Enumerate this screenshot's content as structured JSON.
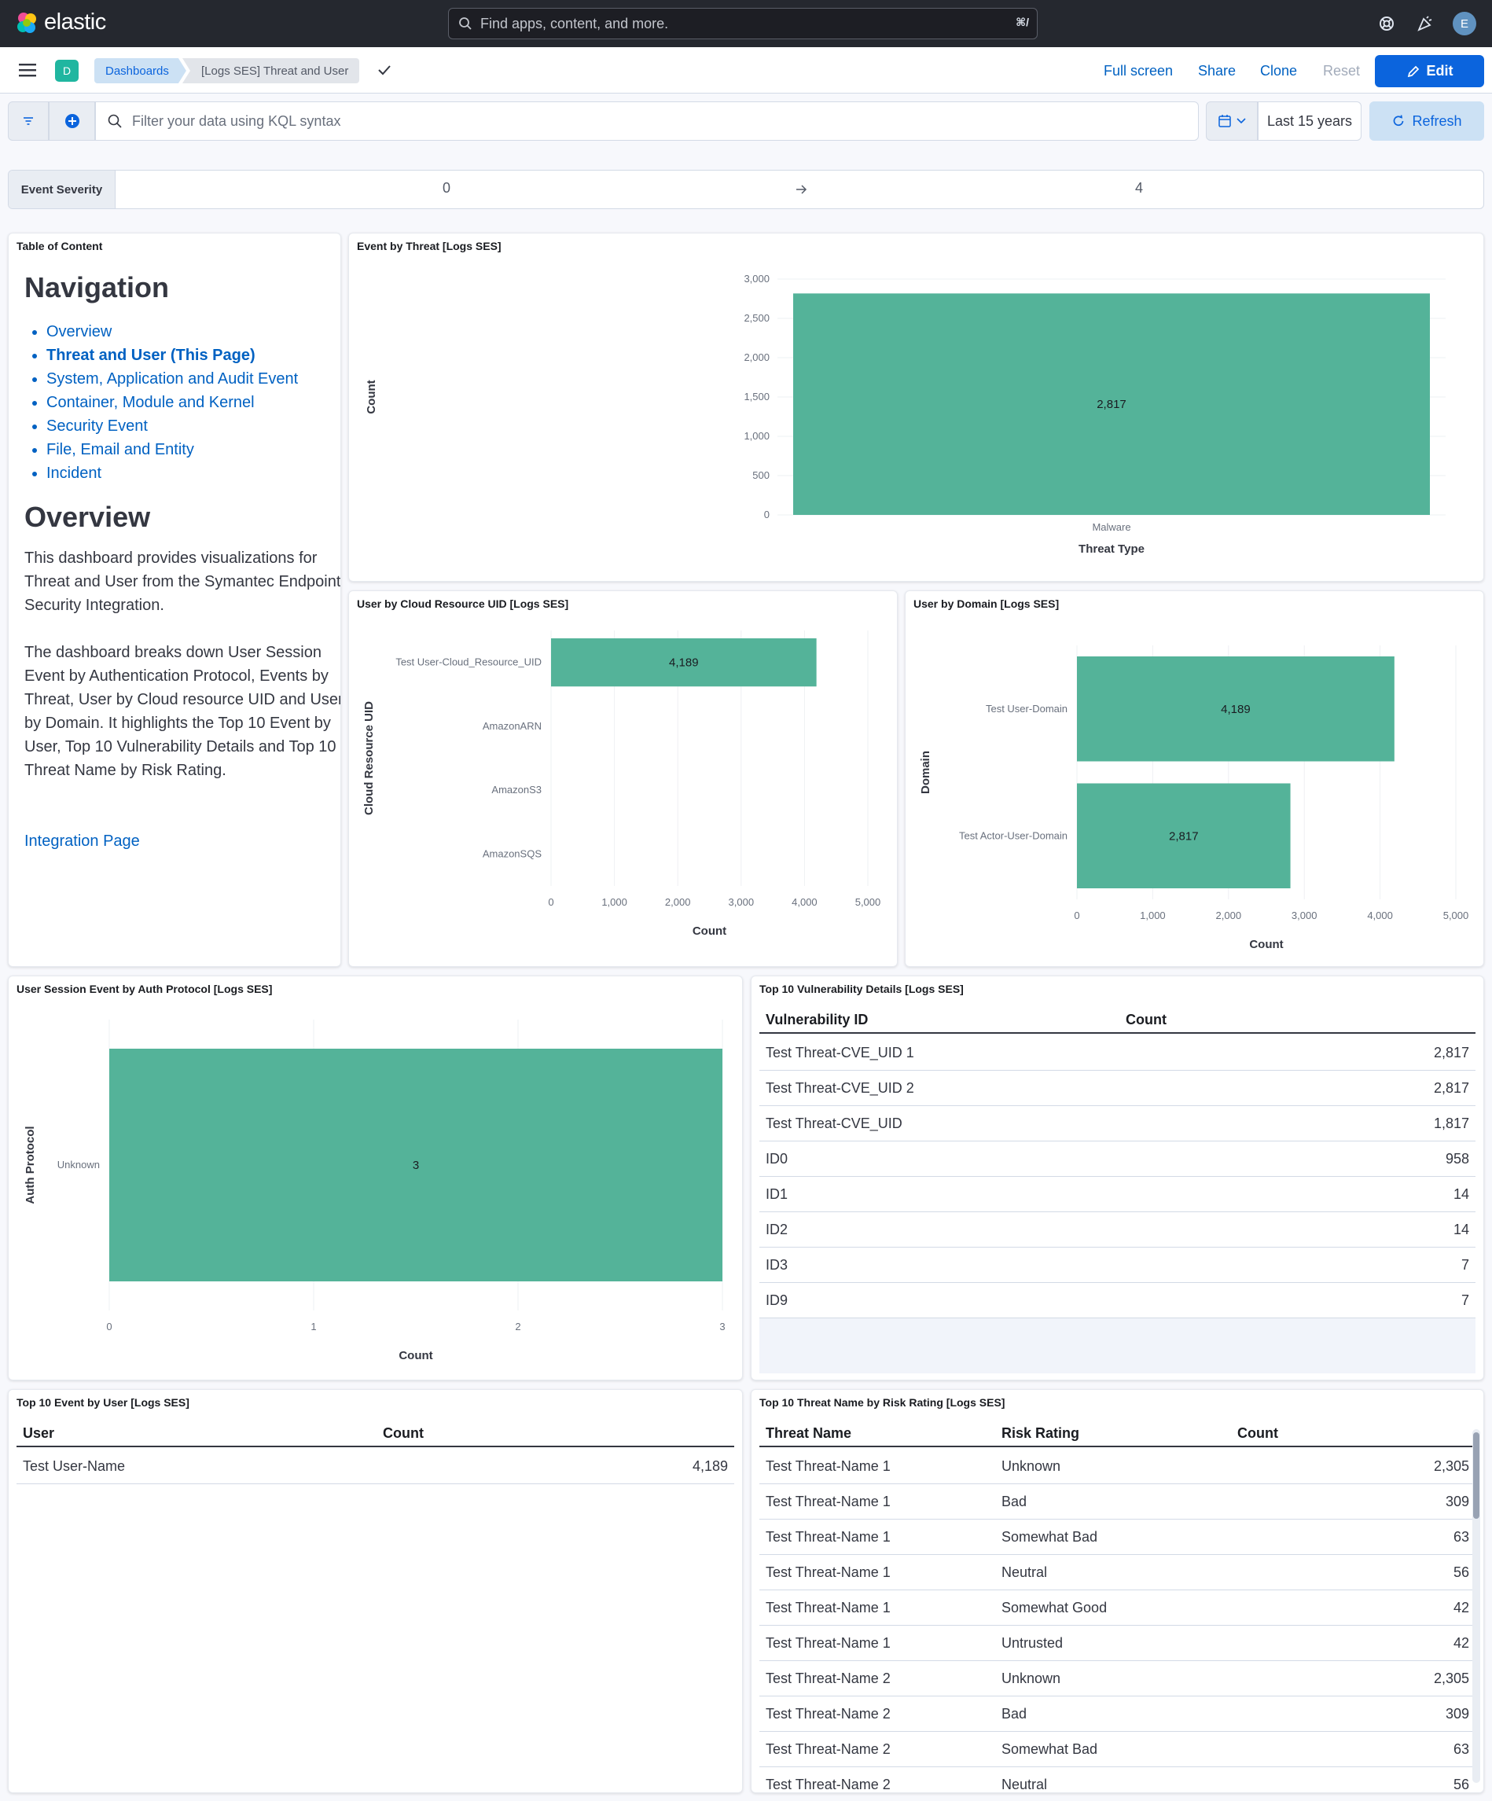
{
  "app": {
    "name": "elastic",
    "avatar_initial": "E"
  },
  "search": {
    "placeholder": "Find apps, content, and more.",
    "shortcut": "⌘/"
  },
  "breadcrumb": {
    "space_initial": "D",
    "items": [
      "Dashboards",
      "[Logs SES] Threat and User"
    ]
  },
  "header_actions": {
    "full_screen": "Full screen",
    "share": "Share",
    "clone": "Clone",
    "reset": "Reset",
    "edit": "Edit"
  },
  "query": {
    "placeholder": "Filter your data using KQL syntax",
    "date_range": "Last 15 years",
    "refresh": "Refresh"
  },
  "control": {
    "label": "Event Severity",
    "min": "0",
    "max": "4"
  },
  "toc": {
    "title": "Table of Content",
    "nav_heading": "Navigation",
    "nav_items": [
      "Overview",
      "Threat and User (This Page)",
      "System, Application and Audit Event",
      "Container, Module and Kernel",
      "Security Event",
      "File, Email and Entity",
      "Incident"
    ],
    "overview_heading": "Overview",
    "para1": "This dashboard provides visualizations for Threat and User from the Symantec Endpoint Security Integration.",
    "para2": "The dashboard breaks down User Session Event by Authentication Protocol, Events by Threat, User by Cloud resource UID and User by Domain. It highlights the Top 10 Event by User, Top 10 Vulnerability Details and Top 10 Threat Name by Risk Rating.",
    "link": "Integration Page"
  },
  "panels": {
    "event_by_threat": "Event by Threat [Logs SES]",
    "user_by_cloud": "User by Cloud Resource UID [Logs SES]",
    "user_by_domain": "User by Domain [Logs SES]",
    "session_by_auth": "User Session Event by Auth Protocol [Logs SES]",
    "vuln": "Top 10 Vulnerability Details [Logs SES]",
    "event_by_user": "Top 10 Event by User [Logs SES]",
    "threat_by_risk": "Top 10 Threat Name by Risk Rating [Logs SES]"
  },
  "chart_data": [
    {
      "id": "event_by_threat",
      "type": "bar",
      "categories": [
        "Malware"
      ],
      "values": [
        2817
      ],
      "value_labels": [
        "2,817"
      ],
      "xlabel": "Threat Type",
      "ylabel": "Count",
      "ylim": [
        0,
        3000
      ],
      "ticks": [
        "0",
        "500",
        "1,000",
        "1,500",
        "2,000",
        "2,500",
        "3,000"
      ],
      "color": "#54b399"
    },
    {
      "id": "user_by_cloud",
      "type": "bar",
      "orientation": "horizontal",
      "categories": [
        "Test User-Cloud_Resource_UID",
        "AmazonARN",
        "AmazonS3",
        "AmazonSQS"
      ],
      "values": [
        4189,
        null,
        null,
        null
      ],
      "value_labels": [
        "4,189",
        "",
        "",
        ""
      ],
      "xlabel": "Count",
      "ylabel": "Cloud Resource UID",
      "xlim": [
        0,
        5000
      ],
      "ticks": [
        "0",
        "1,000",
        "2,000",
        "3,000",
        "4,000",
        "5,000"
      ],
      "color": "#54b399"
    },
    {
      "id": "user_by_domain",
      "type": "bar",
      "orientation": "horizontal",
      "categories": [
        "Test User-Domain",
        "Test Actor-User-Domain"
      ],
      "values": [
        4189,
        2817
      ],
      "value_labels": [
        "4,189",
        "2,817"
      ],
      "xlabel": "Count",
      "ylabel": "Domain",
      "xlim": [
        0,
        5000
      ],
      "ticks": [
        "0",
        "1,000",
        "2,000",
        "3,000",
        "4,000",
        "5,000"
      ],
      "color": "#54b399"
    },
    {
      "id": "session_by_auth",
      "type": "bar",
      "orientation": "horizontal",
      "categories": [
        "Unknown"
      ],
      "values": [
        3
      ],
      "value_labels": [
        "3"
      ],
      "xlabel": "Count",
      "ylabel": "Auth Protocol",
      "xlim": [
        0,
        3
      ],
      "ticks": [
        "0",
        "1",
        "2",
        "3"
      ],
      "color": "#54b399"
    }
  ],
  "vuln_table": {
    "headers": [
      "Vulnerability ID",
      "Count"
    ],
    "rows": [
      [
        "Test Threat-CVE_UID 1",
        "2,817"
      ],
      [
        "Test Threat-CVE_UID 2",
        "2,817"
      ],
      [
        "Test Threat-CVE_UID",
        "1,817"
      ],
      [
        "ID0",
        "958"
      ],
      [
        "ID1",
        "14"
      ],
      [
        "ID2",
        "14"
      ],
      [
        "ID3",
        "7"
      ],
      [
        "ID9",
        "7"
      ]
    ]
  },
  "user_table": {
    "headers": [
      "User",
      "Count"
    ],
    "rows": [
      [
        "Test User-Name",
        "4,189"
      ]
    ]
  },
  "risk_table": {
    "headers": [
      "Threat Name",
      "Risk Rating",
      "Count"
    ],
    "rows": [
      [
        "Test Threat-Name 1",
        "Unknown",
        "2,305"
      ],
      [
        "Test Threat-Name 1",
        "Bad",
        "309"
      ],
      [
        "Test Threat-Name 1",
        "Somewhat Bad",
        "63"
      ],
      [
        "Test Threat-Name 1",
        "Neutral",
        "56"
      ],
      [
        "Test Threat-Name 1",
        "Somewhat Good",
        "42"
      ],
      [
        "Test Threat-Name 1",
        "Untrusted",
        "42"
      ],
      [
        "Test Threat-Name 2",
        "Unknown",
        "2,305"
      ],
      [
        "Test Threat-Name 2",
        "Bad",
        "309"
      ],
      [
        "Test Threat-Name 2",
        "Somewhat Bad",
        "63"
      ],
      [
        "Test Threat-Name 2",
        "Neutral",
        "56"
      ]
    ]
  }
}
